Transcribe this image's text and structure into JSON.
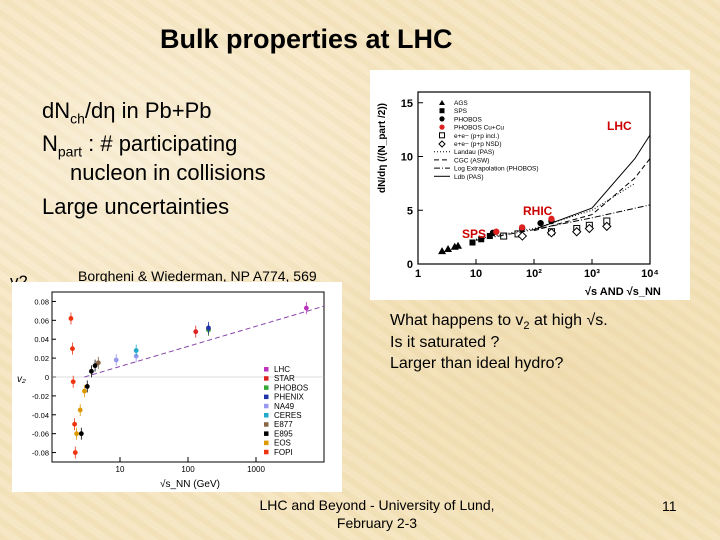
{
  "slide": {
    "title": "Bulk properties at LHC",
    "bullets": {
      "b1_pre": "dN",
      "b1_sub": "ch",
      "b1_post": "/dη in Pb+Pb",
      "b2_pre": "N",
      "b2_sub": "part",
      "b2_post": " : # participating",
      "b2_cont": "nucleon in collisions",
      "b3": "Large uncertainties"
    },
    "v2_label": "v2",
    "reference": "Borgheni & Wiederman, NP A774, 569",
    "questions": {
      "q1_pre": "What happens to v",
      "q1_sub": "2",
      "q1_post": " at high √s.",
      "q2": "Is it saturated ?",
      "q3": "Larger than ideal hydro?"
    },
    "footer": {
      "line1": "LHC and Beyond - University of Lund,",
      "line2": "February 2-3"
    },
    "page_number": "11"
  },
  "chart_data": [
    {
      "type": "scatter",
      "x_scale": "log",
      "ylabel": "dN/dη (/(N_part /2))",
      "xlabel": "√s AND √s_NN",
      "xlim": [
        1,
        10000
      ],
      "ylim": [
        0,
        16
      ],
      "yticks": [
        "0",
        "5",
        "10",
        "15"
      ],
      "xticks": [
        "1",
        "10",
        "10²",
        "10³",
        "10⁴"
      ],
      "annotations": [
        "LHC",
        "RHIC",
        "SPS"
      ],
      "legend": [
        "AGS",
        "SPS",
        "PHOBOS",
        "PHOBOS Cu+Cu",
        "e+e− (p+p incl.)",
        "e+e− (p+p NSD)",
        "Landau (PAS)",
        "CGC (ASW)",
        "Log Extrapolation (PHOBOS)",
        "Ldb (PAS)"
      ],
      "legend_position": "top-left",
      "series": [
        {
          "name": "AGS",
          "marker": "triangle",
          "color": "#000000",
          "points": [
            [
              2.6,
              1.2
            ],
            [
              3.3,
              1.4
            ],
            [
              4.3,
              1.6
            ],
            [
              4.9,
              1.7
            ]
          ]
        },
        {
          "name": "SPS",
          "marker": "square",
          "color": "#000000",
          "points": [
            [
              8.7,
              2.0
            ],
            [
              12.3,
              2.3
            ],
            [
              17.3,
              2.6
            ]
          ]
        },
        {
          "name": "PHOBOS",
          "marker": "circle",
          "color": "#000000",
          "points": [
            [
              19.6,
              2.9
            ],
            [
              62.4,
              3.3
            ],
            [
              130,
              3.8
            ],
            [
              200,
              4.0
            ]
          ]
        },
        {
          "name": "PHOBOS Cu+Cu",
          "marker": "circle",
          "color": "#dd2222",
          "points": [
            [
              22.4,
              3.0
            ],
            [
              62.4,
              3.4
            ],
            [
              200,
              4.2
            ]
          ]
        },
        {
          "name": "e+e− (p+p incl.)",
          "marker": "open-square",
          "color": "#000000",
          "points": [
            [
              30,
              2.6
            ],
            [
              53,
              2.8
            ],
            [
              200,
              3.0
            ],
            [
              546,
              3.3
            ],
            [
              900,
              3.6
            ],
            [
              1800,
              4.0
            ]
          ]
        },
        {
          "name": "e+e− (p+p NSD)",
          "marker": "open-diamond",
          "color": "#000000",
          "points": [
            [
              63,
              2.6
            ],
            [
              200,
              2.9
            ],
            [
              546,
              3.0
            ],
            [
              900,
              3.3
            ],
            [
              1800,
              3.5
            ]
          ]
        },
        {
          "name": "Landau (PAS)",
          "line": "dotted",
          "color": "#000000",
          "points": [
            [
              10,
              2.3
            ],
            [
              100,
              3.3
            ],
            [
              1000,
              5.0
            ],
            [
              5500,
              7.5
            ]
          ]
        },
        {
          "name": "CGC (ASW)",
          "line": "dashed",
          "color": "#000000",
          "points": [
            [
              100,
              3.1
            ],
            [
              1000,
              4.6
            ],
            [
              5500,
              8.0
            ],
            [
              10000,
              9.8
            ]
          ]
        },
        {
          "name": "Log Extrapolation (PHOBOS)",
          "line": "dash-dot",
          "color": "#000000",
          "points": [
            [
              10,
              2.2
            ],
            [
              100,
              3.2
            ],
            [
              1000,
              4.3
            ],
            [
              10000,
              5.5
            ]
          ]
        },
        {
          "name": "Ldb (PAS)",
          "line": "solid",
          "color": "#000000",
          "points": [
            [
              100,
              3.2
            ],
            [
              1000,
              5.2
            ],
            [
              5500,
              9.8
            ],
            [
              10000,
              12.0
            ]
          ]
        }
      ]
    },
    {
      "type": "scatter",
      "x_scale": "log",
      "ylabel": "v₂",
      "xlabel": "√s_NN (GeV)",
      "xlim": [
        1,
        10000
      ],
      "ylim": [
        -0.09,
        0.09
      ],
      "yticks": [
        "0.08",
        "0.06",
        "0.04",
        "0.02",
        "0",
        "-0.02",
        "-0.04",
        "-0.06",
        "-0.08"
      ],
      "xticks": [
        "10",
        "100",
        "1000"
      ],
      "legend": [
        "LHC",
        "STAR",
        "PHOBOS",
        "PHENIX",
        "NA49",
        "CERES",
        "E877",
        "E895",
        "EOS",
        "FOPI"
      ],
      "legend_position": "bottom-right",
      "series": [
        {
          "name": "LHC",
          "color": "#bb33bb",
          "points": [
            [
              5500,
              0.073
            ]
          ]
        },
        {
          "name": "STAR",
          "color": "#dd2222",
          "points": [
            [
              130,
              0.048
            ],
            [
              200,
              0.05
            ]
          ]
        },
        {
          "name": "PHOBOS",
          "color": "#33aa33",
          "points": [
            [
              200,
              0.05
            ]
          ]
        },
        {
          "name": "PHENIX",
          "color": "#2233aa",
          "points": [
            [
              200,
              0.052
            ]
          ]
        },
        {
          "name": "NA49",
          "color": "#9999ee",
          "points": [
            [
              8.8,
              0.018
            ],
            [
              17.3,
              0.022
            ]
          ]
        },
        {
          "name": "CERES",
          "color": "#22aacc",
          "points": [
            [
              17.3,
              0.028
            ]
          ]
        },
        {
          "name": "E877",
          "color": "#886644",
          "points": [
            [
              4.8,
              0.015
            ]
          ]
        },
        {
          "name": "E895",
          "color": "#000000",
          "points": [
            [
              2.7,
              -0.06
            ],
            [
              3.3,
              -0.01
            ],
            [
              3.8,
              0.006
            ],
            [
              4.3,
              0.012
            ]
          ]
        },
        {
          "name": "EOS",
          "color": "#dd9900",
          "points": [
            [
              2.3,
              -0.06
            ],
            [
              2.6,
              -0.035
            ],
            [
              3.0,
              -0.015
            ]
          ]
        },
        {
          "name": "FOPI",
          "color": "#ee3311",
          "points": [
            [
              1.9,
              0.062
            ],
            [
              2.0,
              0.03
            ],
            [
              2.05,
              -0.005
            ],
            [
              2.15,
              -0.05
            ],
            [
              2.2,
              -0.08
            ]
          ]
        }
      ],
      "fit_line": {
        "style": "dashed",
        "color": "#8844aa",
        "points": [
          [
            3,
            0.0
          ],
          [
            10000,
            0.075
          ]
        ]
      }
    }
  ]
}
